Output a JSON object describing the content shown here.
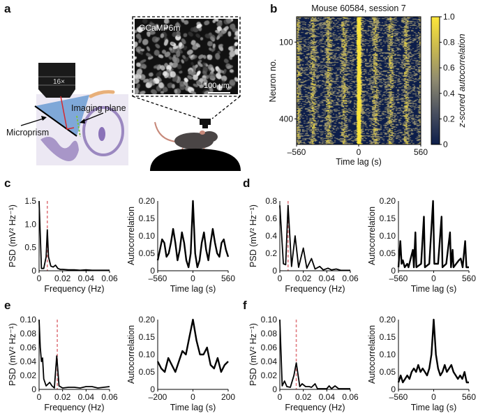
{
  "panel_letters": [
    "a",
    "b",
    "c",
    "d",
    "e",
    "f"
  ],
  "illustration": {
    "objective_label": "16×",
    "imaging_plane_label": "Imaging plane",
    "microprism_label": "Microprism",
    "image_label": "GCaMP6m",
    "scale_bar_label": "100 μm",
    "colors": {
      "prism": "#7fa8d8",
      "tissue": "#e9e4f0",
      "tissue_stain": "#9b88c0",
      "laser": "#d6282d",
      "imaging_plane": "#7dc242",
      "headplate": "#e8b07a",
      "mouse": "#4a4545"
    }
  },
  "chart_data": [
    {
      "panel": "b",
      "type": "heatmap",
      "title": "Mouse 60584, session 7",
      "xlabel": "Time lag (s)",
      "ylabel": "Neuron no.",
      "xlim": [
        -560,
        560
      ],
      "xticks": [
        "-560",
        "0",
        "560"
      ],
      "ylim": [
        1,
        500
      ],
      "yticks": [
        "100",
        "400"
      ],
      "ytick_values": [
        100,
        400
      ],
      "colorbar": {
        "label": "z-scored autocorrelation",
        "range": [
          0,
          1
        ],
        "ticks": [
          "0",
          "0.2",
          "0.4",
          "0.6",
          "0.8",
          "1.0"
        ],
        "colors": [
          "#0d1e4a",
          "#4a5060",
          "#8e8a70",
          "#c8b850",
          "#fde73a"
        ]
      }
    },
    {
      "panel": "c",
      "type": "line",
      "xlabel": "Frequency (Hz)",
      "ylabel": "PSD (mV² Hz⁻¹)",
      "xlim": [
        0,
        0.06
      ],
      "ylim": [
        0,
        1.5
      ],
      "xticks": [
        "0",
        "0.02",
        "0.04",
        "0.06"
      ],
      "xtick_values": [
        0,
        0.02,
        0.04,
        0.06
      ],
      "yticks": [
        "0",
        "0.5",
        "1.0",
        "1.5"
      ],
      "ytick_values": [
        0,
        0.5,
        1.0,
        1.5
      ],
      "marker_line": 0.007,
      "x": [
        0,
        0.002,
        0.004,
        0.006,
        0.007,
        0.008,
        0.01,
        0.012,
        0.014,
        0.016,
        0.018,
        0.02,
        0.025,
        0.03,
        0.035,
        0.04,
        0.045,
        0.05,
        0.055,
        0.06
      ],
      "y": [
        1.5,
        0.05,
        0.05,
        0.3,
        0.88,
        0.3,
        0.1,
        0.08,
        0.12,
        0.05,
        0.03,
        0.03,
        0.02,
        0.02,
        0.01,
        0.02,
        0.01,
        0.01,
        0.01,
        0.01
      ]
    },
    {
      "panel": "c",
      "type": "line",
      "xlabel": "Time lag (s)",
      "ylabel": "Autocorrelation",
      "xlim": [
        -560,
        560
      ],
      "ylim": [
        0,
        0.2
      ],
      "xticks": [
        "-560",
        "0",
        "560"
      ],
      "xtick_values": [
        -560,
        0,
        560
      ],
      "yticks": [
        "0",
        "0.05",
        "0.10",
        "0.15",
        "0.20"
      ],
      "ytick_values": [
        0,
        0.05,
        0.1,
        0.15,
        0.2
      ],
      "x": [
        -560,
        -525,
        -490,
        -455,
        -420,
        -385,
        -350,
        -315,
        -280,
        -245,
        -210,
        -175,
        -140,
        -105,
        -70,
        -35,
        0,
        35,
        70,
        105,
        140,
        175,
        210,
        245,
        280,
        315,
        350,
        385,
        420,
        455,
        490,
        525,
        560
      ],
      "y": [
        0.03,
        0.06,
        0.09,
        0.08,
        0.04,
        0.05,
        0.08,
        0.12,
        0.08,
        0.03,
        0.06,
        0.11,
        0.08,
        0.03,
        0.01,
        0.05,
        0.2,
        0.05,
        0.01,
        0.03,
        0.08,
        0.11,
        0.06,
        0.03,
        0.08,
        0.12,
        0.08,
        0.05,
        0.04,
        0.08,
        0.09,
        0.06,
        0.04
      ]
    },
    {
      "panel": "d",
      "type": "line",
      "xlabel": "Frequency (Hz)",
      "ylabel": "PSD (mV² Hz⁻¹)",
      "xlim": [
        0,
        0.06
      ],
      "ylim": [
        0,
        0.8
      ],
      "xticks": [
        "0",
        "0.02",
        "0.04",
        "0.06"
      ],
      "xtick_values": [
        0,
        0.02,
        0.04,
        0.06
      ],
      "yticks": [
        "0",
        "0.2",
        "0.4",
        "0.6",
        "0.8"
      ],
      "ytick_values": [
        0,
        0.2,
        0.4,
        0.6,
        0.8
      ],
      "marker_line": 0.007,
      "x": [
        0,
        0.003,
        0.005,
        0.007,
        0.01,
        0.013,
        0.016,
        0.02,
        0.023,
        0.027,
        0.03,
        0.034,
        0.037,
        0.041,
        0.044,
        0.048,
        0.052,
        0.06
      ],
      "y": [
        0.75,
        0.08,
        0.07,
        0.75,
        0.05,
        0.4,
        0.04,
        0.26,
        0.03,
        0.14,
        0.02,
        0.05,
        0.01,
        0.03,
        0.01,
        0.02,
        0.005,
        0.005
      ]
    },
    {
      "panel": "d",
      "type": "line",
      "xlabel": "Time lag (s)",
      "ylabel": "Autocorrelation",
      "xlim": [
        -560,
        560
      ],
      "ylim": [
        0,
        0.2
      ],
      "xticks": [
        "-560",
        "0",
        "560"
      ],
      "xtick_values": [
        -560,
        0,
        560
      ],
      "yticks": [
        "0",
        "0.05",
        "0.10",
        "0.15",
        "0.20"
      ],
      "ytick_values": [
        0,
        0.05,
        0.1,
        0.15,
        0.2
      ],
      "x": [
        -560,
        -530,
        -510,
        -490,
        -460,
        -420,
        -400,
        -330,
        -315,
        -290,
        -275,
        -200,
        -155,
        -140,
        -70,
        -10,
        10,
        70,
        125,
        140,
        200,
        260,
        275,
        300,
        315,
        400,
        430,
        460,
        500,
        520,
        560
      ],
      "y": [
        0.01,
        0.085,
        0.02,
        0.03,
        0.01,
        0.02,
        0.01,
        0.06,
        0.01,
        0.11,
        0.01,
        0.02,
        0.155,
        0.01,
        0.02,
        0.2,
        0.02,
        0.02,
        0.155,
        0.01,
        0.02,
        0.11,
        0.01,
        0.06,
        0.01,
        0.03,
        0.035,
        0.01,
        0.085,
        0.01,
        0.01
      ]
    },
    {
      "panel": "e",
      "type": "line",
      "xlabel": "Frequency (Hz)",
      "ylabel": "PSD (mV² Hz⁻¹)",
      "xlim": [
        0,
        0.06
      ],
      "ylim": [
        0,
        0.1
      ],
      "xticks": [
        "0",
        "0.02",
        "0.04",
        "0.06"
      ],
      "xtick_values": [
        0,
        0.02,
        0.04,
        0.06
      ],
      "yticks": [
        "0",
        "0.02",
        "0.04",
        "0.06",
        "0.08",
        "0.10"
      ],
      "ytick_values": [
        0,
        0.02,
        0.04,
        0.06,
        0.08,
        0.1
      ],
      "marker_line": 0.0155,
      "x": [
        0,
        0.001,
        0.002,
        0.003,
        0.004,
        0.006,
        0.009,
        0.011,
        0.013,
        0.015,
        0.017,
        0.02,
        0.025,
        0.03,
        0.035,
        0.04,
        0.045,
        0.05,
        0.055,
        0.06
      ],
      "y": [
        0.1,
        0.06,
        0.04,
        0.045,
        0.015,
        0.005,
        0.01,
        0.005,
        0.002,
        0.048,
        0.005,
        0.002,
        0.003,
        0.003,
        0.002,
        0.004,
        0.004,
        0.002,
        0.003,
        0.004
      ]
    },
    {
      "panel": "e",
      "type": "line",
      "xlabel": "Time lag (s)",
      "ylabel": "Autocorrelation",
      "xlim": [
        -200,
        200
      ],
      "ylim": [
        0,
        0.2
      ],
      "xticks": [
        "-200",
        "0",
        "200"
      ],
      "xtick_values": [
        -200,
        0,
        200
      ],
      "yticks": [
        "0",
        "0.05",
        "0.10",
        "0.15",
        "0.20"
      ],
      "ytick_values": [
        0,
        0.05,
        0.1,
        0.15,
        0.2
      ],
      "x": [
        -200,
        -180,
        -160,
        -140,
        -120,
        -100,
        -80,
        -60,
        -40,
        -20,
        0,
        20,
        40,
        60,
        80,
        100,
        120,
        140,
        160,
        180,
        200
      ],
      "y": [
        0.08,
        0.06,
        0.05,
        0.09,
        0.07,
        0.05,
        0.08,
        0.11,
        0.1,
        0.15,
        0.2,
        0.14,
        0.1,
        0.1,
        0.12,
        0.07,
        0.06,
        0.09,
        0.05,
        0.07,
        0.08
      ]
    },
    {
      "panel": "f",
      "type": "line",
      "xlabel": "Frequency (Hz)",
      "ylabel": "PSD (mV² Hz⁻¹)",
      "xlim": [
        0,
        0.06
      ],
      "ylim": [
        0,
        0.1
      ],
      "xticks": [
        "0",
        "0.02",
        "0.04",
        "0.06"
      ],
      "xtick_values": [
        0,
        0.02,
        0.04,
        0.06
      ],
      "yticks": [
        "0",
        "0.02",
        "0.04",
        "0.06",
        "0.08",
        "0.10"
      ],
      "ytick_values": [
        0,
        0.02,
        0.04,
        0.06,
        0.08,
        0.1
      ],
      "marker_line": 0.014,
      "x": [
        0,
        0.002,
        0.004,
        0.006,
        0.009,
        0.012,
        0.014,
        0.017,
        0.019,
        0.022,
        0.025,
        0.027,
        0.03,
        0.032,
        0.04,
        0.042,
        0.044,
        0.047,
        0.05,
        0.06
      ],
      "y": [
        0.1,
        0.005,
        0.012,
        0.004,
        0.003,
        0.02,
        0.038,
        0.004,
        0.008,
        0.004,
        0.004,
        0.003,
        0.008,
        0.001,
        0.001,
        0.005,
        0.001,
        0.005,
        0.001,
        0.001
      ]
    },
    {
      "panel": "f",
      "type": "line",
      "xlabel": "Time lag (s)",
      "ylabel": "Autocorrelation",
      "xlim": [
        -560,
        560
      ],
      "ylim": [
        0,
        0.2
      ],
      "xticks": [
        "-560",
        "0",
        "560"
      ],
      "xtick_values": [
        -560,
        0,
        560
      ],
      "yticks": [
        "0",
        "0.05",
        "0.10",
        "0.15",
        "0.20"
      ],
      "ytick_values": [
        0,
        0.05,
        0.1,
        0.15,
        0.2
      ],
      "x": [
        -560,
        -525,
        -490,
        -455,
        -420,
        -385,
        -350,
        -315,
        -280,
        -245,
        -210,
        -175,
        -140,
        -105,
        -70,
        -35,
        0,
        35,
        70,
        105,
        140,
        175,
        210,
        245,
        280,
        315,
        350,
        385,
        420,
        455,
        490,
        525,
        560
      ],
      "y": [
        0.02,
        0.04,
        0.02,
        0.03,
        0.04,
        0.03,
        0.05,
        0.06,
        0.05,
        0.07,
        0.05,
        0.06,
        0.05,
        0.04,
        0.06,
        0.1,
        0.2,
        0.1,
        0.06,
        0.04,
        0.05,
        0.07,
        0.05,
        0.06,
        0.07,
        0.05,
        0.04,
        0.03,
        0.04,
        0.03,
        0.05,
        0.02,
        0.02
      ]
    }
  ],
  "style": {
    "line_color": "#000000",
    "marker_line_color": "#e07a80"
  }
}
